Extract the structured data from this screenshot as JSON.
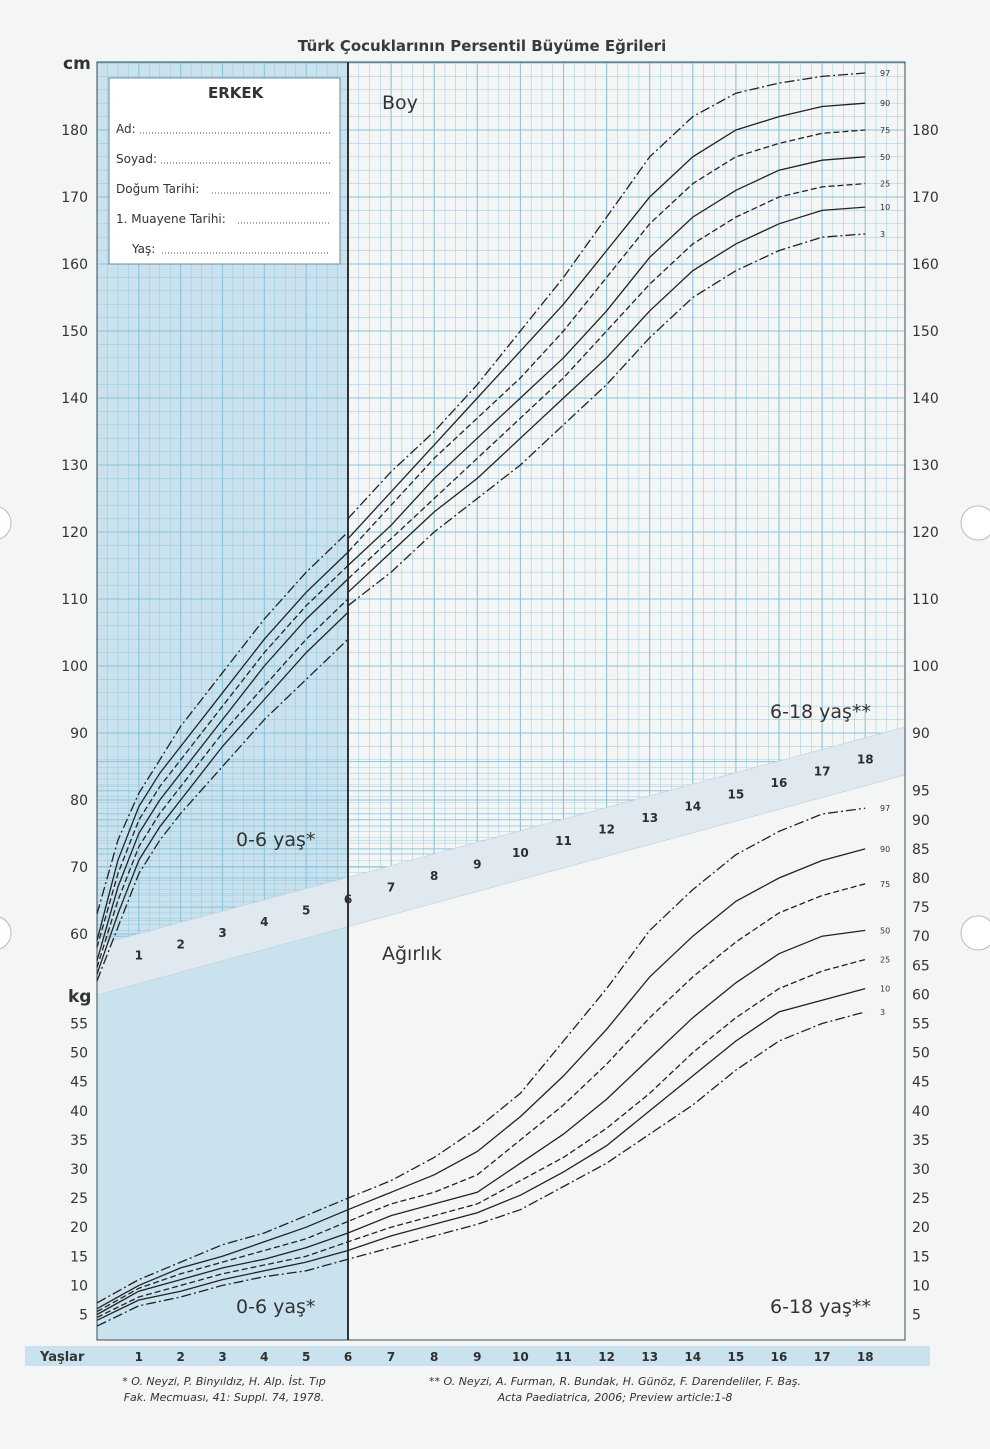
{
  "page_title": "Türk Çocuklarının Persentil Büyüme Eğrileri",
  "form": {
    "heading": "ERKEK",
    "fields": [
      "Ad:",
      "Soyad:",
      "Doğum Tarihi:",
      "1. Muayene Tarihi:",
      "Yaş:"
    ]
  },
  "references": {
    "ref1_line1": "* O. Neyzi, P. Binyıldız, H. Alp. İst. Tıp",
    "ref1_line2": "Fak. Mecmuası, 41: Suppl. 74, 1978.",
    "ref2_line1": "** O. Neyzi, A. Furman, R. Bundak, H. Günöz, F. Darendeliler, F. Baş.",
    "ref2_line2": "Acta Paediatrica, 2006; Preview article:1-8"
  },
  "colors": {
    "grid": "#8cc3dc",
    "shade": "#c9e2ee",
    "curve": "#222222",
    "band": "#dfe9ef"
  },
  "chart_data": [
    {
      "type": "line",
      "chart_label": "Boy",
      "ylabel": "cm",
      "xlabel": "Yaşlar",
      "x_ticks": [
        1,
        2,
        3,
        4,
        5,
        6,
        7,
        8,
        9,
        10,
        11,
        12,
        13,
        14,
        15,
        16,
        17,
        18
      ],
      "y_ticks": [
        60,
        70,
        80,
        90,
        100,
        110,
        120,
        130,
        140,
        150,
        160,
        170,
        180
      ],
      "y_ticks_right": [
        90,
        100,
        110,
        120,
        130,
        140,
        150,
        160,
        170,
        180
      ],
      "ylim": [
        56,
        190
      ],
      "xlim": [
        0,
        19
      ],
      "period_labels": [
        "0-6 yaş*",
        "6-18 yaş**"
      ],
      "shaded_region": "0-6",
      "series_early": [
        {
          "name": "97",
          "style": "dashdot",
          "x": [
            0,
            0.5,
            1,
            1.5,
            2,
            3,
            4,
            5,
            6
          ],
          "y": [
            63,
            74,
            81,
            86,
            91,
            99,
            107,
            114,
            120
          ]
        },
        {
          "name": "90",
          "style": "solid",
          "x": [
            0,
            0.5,
            1,
            1.5,
            2,
            3,
            4,
            5,
            6
          ],
          "y": [
            59,
            71,
            79,
            84,
            88,
            96,
            104,
            111,
            117
          ]
        },
        {
          "name": "75",
          "style": "dashed",
          "x": [
            0,
            0.5,
            1,
            1.5,
            2,
            3,
            4,
            5,
            6
          ],
          "y": [
            58,
            69,
            77,
            82,
            86,
            94,
            102,
            109,
            115
          ]
        },
        {
          "name": "50",
          "style": "solid",
          "x": [
            0,
            0.5,
            1,
            1.5,
            2,
            3,
            4,
            5,
            6
          ],
          "y": [
            56,
            67,
            75,
            80,
            84,
            92,
            100,
            107,
            113
          ]
        },
        {
          "name": "25",
          "style": "dashed",
          "x": [
            0,
            0.5,
            1,
            1.5,
            2,
            3,
            4,
            5,
            6
          ],
          "y": [
            55,
            65,
            73,
            78,
            82,
            90,
            97,
            104,
            110
          ]
        },
        {
          "name": "10",
          "style": "solid",
          "x": [
            0,
            0.5,
            1,
            1.5,
            2,
            3,
            4,
            5,
            6
          ],
          "y": [
            54,
            63,
            71,
            76,
            80,
            88,
            95,
            102,
            108
          ]
        },
        {
          "name": "3",
          "style": "dashdot",
          "x": [
            0,
            0.5,
            1,
            1.5,
            2,
            3,
            4,
            5,
            6
          ],
          "y": [
            53,
            61,
            69,
            74,
            78,
            85,
            92,
            98,
            104
          ]
        }
      ],
      "series": [
        {
          "name": "97",
          "style": "dashdot",
          "x": [
            6,
            7,
            8,
            9,
            10,
            11,
            12,
            13,
            14,
            15,
            16,
            17,
            18
          ],
          "y": [
            122,
            129,
            135,
            142,
            150,
            158,
            167,
            176,
            182,
            185.5,
            187,
            188,
            188.5
          ]
        },
        {
          "name": "90",
          "style": "solid",
          "x": [
            6,
            7,
            8,
            9,
            10,
            11,
            12,
            13,
            14,
            15,
            16,
            17,
            18
          ],
          "y": [
            119,
            126,
            133,
            140,
            147,
            154,
            162,
            170,
            176,
            180,
            182,
            183.5,
            184
          ]
        },
        {
          "name": "75",
          "style": "dashed",
          "x": [
            6,
            7,
            8,
            9,
            10,
            11,
            12,
            13,
            14,
            15,
            16,
            17,
            18
          ],
          "y": [
            117,
            124,
            131,
            137,
            143,
            150,
            158,
            166,
            172,
            176,
            178,
            179.5,
            180
          ]
        },
        {
          "name": "50",
          "style": "solid",
          "x": [
            6,
            7,
            8,
            9,
            10,
            11,
            12,
            13,
            14,
            15,
            16,
            17,
            18
          ],
          "y": [
            115,
            121,
            128,
            134,
            140,
            146,
            153,
            161,
            167,
            171,
            174,
            175.5,
            176
          ]
        },
        {
          "name": "25",
          "style": "dashed",
          "x": [
            6,
            7,
            8,
            9,
            10,
            11,
            12,
            13,
            14,
            15,
            16,
            17,
            18
          ],
          "y": [
            113,
            119,
            125,
            131,
            137,
            143,
            150,
            157,
            163,
            167,
            170,
            171.5,
            172
          ]
        },
        {
          "name": "10",
          "style": "solid",
          "x": [
            6,
            7,
            8,
            9,
            10,
            11,
            12,
            13,
            14,
            15,
            16,
            17,
            18
          ],
          "y": [
            111,
            117,
            123,
            128,
            134,
            140,
            146,
            153,
            159,
            163,
            166,
            168,
            168.5
          ]
        },
        {
          "name": "3",
          "style": "dashdot",
          "x": [
            6,
            7,
            8,
            9,
            10,
            11,
            12,
            13,
            14,
            15,
            16,
            17,
            18
          ],
          "y": [
            109,
            114,
            120,
            125,
            130,
            136,
            142,
            149,
            155,
            159,
            162,
            164,
            164.5
          ]
        }
      ]
    },
    {
      "type": "line",
      "chart_label": "Ağırlık",
      "ylabel": "kg",
      "xlabel": "Yaşlar",
      "x_ticks": [
        1,
        2,
        3,
        4,
        5,
        6,
        7,
        8,
        9,
        10,
        11,
        12,
        13,
        14,
        15,
        16,
        17,
        18
      ],
      "y_ticks": [
        5,
        10,
        15,
        20,
        25,
        30,
        35,
        40,
        45,
        50,
        55
      ],
      "y_ticks_right": [
        5,
        10,
        15,
        20,
        25,
        30,
        35,
        40,
        45,
        50,
        55,
        60,
        65,
        70,
        75,
        80,
        85,
        90,
        95
      ],
      "ylim": [
        0,
        100
      ],
      "xlim": [
        0,
        19
      ],
      "period_labels": [
        "0-6 yaş*",
        "6-18 yaş**"
      ],
      "shaded_region": "0-6",
      "series": [
        {
          "name": "97",
          "style": "dashdot",
          "x": [
            0,
            1,
            2,
            3,
            4,
            5,
            6,
            7,
            8,
            9,
            10,
            11,
            12,
            13,
            14,
            15,
            16,
            17,
            18
          ],
          "y": [
            7,
            11,
            14,
            17,
            19,
            22,
            25,
            28,
            32,
            37,
            43,
            52,
            61,
            71,
            78,
            84,
            88,
            91,
            92
          ]
        },
        {
          "name": "90",
          "style": "solid",
          "x": [
            0,
            1,
            2,
            3,
            4,
            5,
            6,
            7,
            8,
            9,
            10,
            11,
            12,
            13,
            14,
            15,
            16,
            17,
            18
          ],
          "y": [
            6,
            10,
            13,
            15,
            17.5,
            20,
            23,
            26,
            29,
            33,
            39,
            46,
            54,
            63,
            70,
            76,
            80,
            83,
            85
          ]
        },
        {
          "name": "75",
          "style": "dashed",
          "x": [
            0,
            1,
            2,
            3,
            4,
            5,
            6,
            7,
            8,
            9,
            10,
            11,
            12,
            13,
            14,
            15,
            16,
            17,
            18
          ],
          "y": [
            5.5,
            9.5,
            12,
            14,
            16,
            18,
            21,
            24,
            26,
            29,
            35,
            41,
            48,
            56,
            63,
            69,
            74,
            77,
            79
          ]
        },
        {
          "name": "50",
          "style": "solid",
          "x": [
            0,
            1,
            2,
            3,
            4,
            5,
            6,
            7,
            8,
            9,
            10,
            11,
            12,
            13,
            14,
            15,
            16,
            17,
            18
          ],
          "y": [
            5,
            9,
            11,
            13,
            14.5,
            16.5,
            19,
            22,
            24,
            26,
            31,
            36,
            42,
            49,
            56,
            62,
            67,
            70,
            71
          ]
        },
        {
          "name": "25",
          "style": "dashed",
          "x": [
            0,
            1,
            2,
            3,
            4,
            5,
            6,
            7,
            8,
            9,
            10,
            11,
            12,
            13,
            14,
            15,
            16,
            17,
            18
          ],
          "y": [
            4.5,
            8,
            10,
            12,
            13.5,
            15,
            17.5,
            20,
            22,
            24,
            28,
            32,
            37,
            43,
            50,
            56,
            61,
            64,
            66
          ]
        },
        {
          "name": "10",
          "style": "solid",
          "x": [
            0,
            1,
            2,
            3,
            4,
            5,
            6,
            7,
            8,
            9,
            10,
            11,
            12,
            13,
            14,
            15,
            16,
            17,
            18
          ],
          "y": [
            4,
            7.5,
            9,
            11,
            12.5,
            14,
            16,
            18.5,
            20.5,
            22.5,
            25.5,
            29.5,
            34,
            40,
            46,
            52,
            57,
            59,
            61
          ]
        },
        {
          "name": "3",
          "style": "dashdot",
          "x": [
            0,
            1,
            2,
            3,
            4,
            5,
            6,
            7,
            8,
            9,
            10,
            11,
            12,
            13,
            14,
            15,
            16,
            17,
            18
          ],
          "y": [
            3,
            6.5,
            8,
            10,
            11.5,
            12.5,
            14.5,
            16.5,
            18.5,
            20.5,
            23,
            27,
            31,
            36,
            41,
            47,
            52,
            55,
            57
          ]
        }
      ]
    }
  ]
}
